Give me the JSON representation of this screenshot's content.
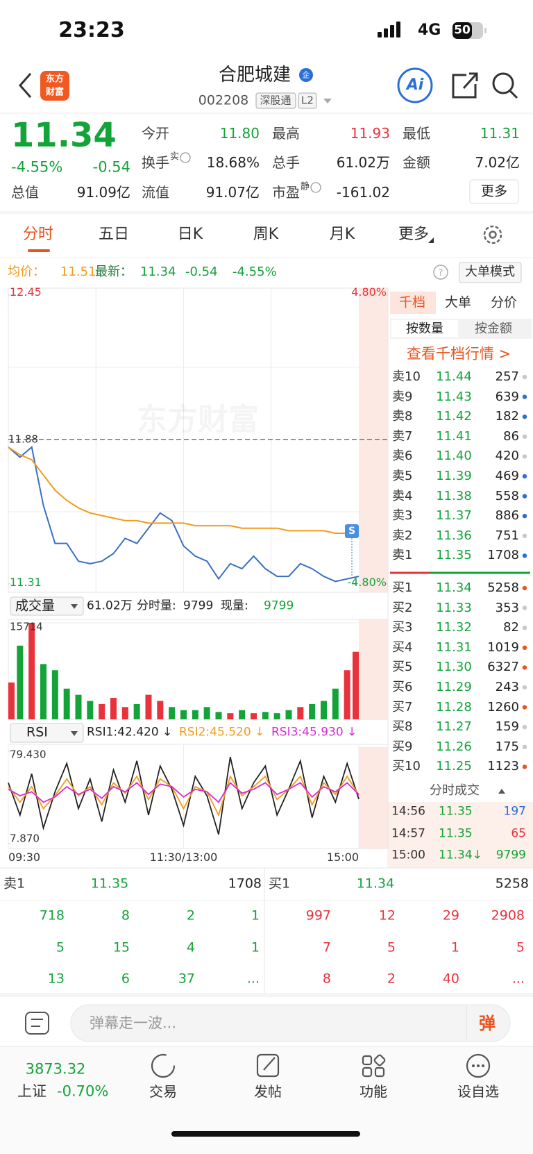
{
  "status": {
    "time": "23:23",
    "network": "4G",
    "battery": "50"
  },
  "header": {
    "logo": [
      "东方",
      "财富"
    ],
    "name": "合肥城建",
    "badge": "企",
    "code": "002208",
    "tags": [
      "深股通",
      "L2"
    ],
    "ai": "Ai"
  },
  "quote": {
    "price": "11.34",
    "change_pct": "-4.55%",
    "change": "-0.54",
    "stats": [
      [
        {
          "label": "今开",
          "value": "11.80",
          "color": "#13a339"
        },
        {
          "label": "最高",
          "value": "11.93",
          "color": "#e8323c"
        },
        {
          "label": "最低",
          "value": "11.31",
          "color": "#13a339"
        }
      ],
      [
        {
          "label": "换手",
          "sup": "实",
          "value": "18.68%"
        },
        {
          "label": "总手",
          "value": "61.02万"
        },
        {
          "label": "金额",
          "value": "7.02亿"
        }
      ],
      [
        {
          "label": "总值",
          "value": "91.09亿"
        },
        {
          "label": "流值",
          "value": "91.07亿"
        },
        {
          "label": "市盈",
          "sup": "静",
          "value": "-161.02"
        }
      ]
    ],
    "more": "更多"
  },
  "tabs": [
    "分时",
    "五日",
    "日K",
    "周K",
    "月K",
    "更多"
  ],
  "summary": {
    "avg_label": "均价：",
    "avg": "11.51",
    "latest_label": "最新：",
    "latest": "11.34",
    "change": "-0.54",
    "change_pct": "-4.55%",
    "mode": "大单模式"
  },
  "watermark": "东方财富",
  "chart_data": [
    {
      "type": "line",
      "x": [
        0,
        8,
        16,
        24,
        32,
        40,
        48,
        56,
        64,
        72,
        80,
        88,
        96,
        104,
        112,
        120,
        128,
        136,
        144,
        152,
        160,
        168,
        176,
        184,
        192,
        200,
        208,
        216,
        224,
        232,
        240
      ],
      "xlim": [
        0,
        240
      ],
      "ylim": [
        11.31,
        12.45
      ],
      "yticks": [
        12.45,
        11.31
      ],
      "y2lim": [
        -4.8,
        4.8
      ],
      "y2ticks": [
        {
          "value": 4.8,
          "label": "4.80%"
        },
        {
          "value": -4.8,
          "label": "-4.80%"
        }
      ],
      "reference": 11.88,
      "annotation": "S",
      "series": [
        {
          "color": "#3a6fc4",
          "values": [
            11.85,
            11.81,
            11.85,
            11.62,
            11.47,
            11.47,
            11.4,
            11.39,
            11.4,
            11.43,
            11.49,
            11.47,
            11.53,
            11.59,
            11.56,
            11.46,
            11.42,
            11.4,
            11.33,
            11.39,
            11.37,
            11.42,
            11.37,
            11.34,
            11.34,
            11.39,
            11.37,
            11.34,
            11.32,
            11.33,
            11.34
          ]
        },
        {
          "color": "#f29b1a",
          "values": [
            11.85,
            11.82,
            11.8,
            11.74,
            11.68,
            11.64,
            11.61,
            11.59,
            11.58,
            11.57,
            11.56,
            11.56,
            11.55,
            11.55,
            11.55,
            11.55,
            11.54,
            11.54,
            11.54,
            11.54,
            11.53,
            11.53,
            11.53,
            11.53,
            11.52,
            11.52,
            11.52,
            11.52,
            11.51,
            11.51,
            11.51
          ]
        }
      ]
    },
    {
      "type": "bar",
      "title": "成交量",
      "total": "61.02万",
      "period_label": "分时量:",
      "period": "9799",
      "now_label": "现量:",
      "now": "9799",
      "x": [
        0,
        8,
        16,
        24,
        32,
        40,
        48,
        56,
        64,
        72,
        80,
        88,
        96,
        104,
        112,
        120,
        128,
        136,
        144,
        152,
        160,
        168,
        176,
        184,
        192,
        200,
        208,
        216,
        224,
        232,
        240
      ],
      "xlim": [
        0,
        240
      ],
      "ylim": [
        0,
        15714
      ],
      "yticks": [
        15714
      ],
      "values": [
        6000,
        12000,
        15714,
        9000,
        8000,
        5000,
        4000,
        3000,
        2500,
        3500,
        2000,
        2500,
        4000,
        3000,
        2000,
        1500,
        1500,
        2000,
        1200,
        1000,
        1500,
        1000,
        1200,
        1000,
        1500,
        2000,
        2500,
        3000,
        5000,
        8000,
        11000
      ],
      "colors": [
        "#e8323c",
        "#13a339",
        "#e8323c",
        "#13a339",
        "#13a339",
        "#13a339",
        "#13a339",
        "#13a339",
        "#e8323c",
        "#e8323c",
        "#e8323c",
        "#13a339",
        "#e8323c",
        "#e8323c",
        "#13a339",
        "#13a339",
        "#13a339",
        "#13a339",
        "#13a339",
        "#e8323c",
        "#13a339",
        "#e8323c",
        "#13a339",
        "#13a339",
        "#13a339",
        "#e8323c",
        "#13a339",
        "#13a339",
        "#13a339",
        "#e8323c",
        "#e8323c"
      ]
    },
    {
      "type": "line",
      "title": "RSI",
      "x": [
        0,
        8,
        16,
        24,
        32,
        40,
        48,
        56,
        64,
        72,
        80,
        88,
        96,
        104,
        112,
        120,
        128,
        136,
        144,
        152,
        160,
        168,
        176,
        184,
        192,
        200,
        208,
        216,
        224,
        232,
        240
      ],
      "xlim": [
        0,
        240
      ],
      "xticks": [
        {
          "value": 0,
          "label": "09:30"
        },
        {
          "value": 120,
          "label": "11:30/13:00"
        },
        {
          "value": 240,
          "label": "15:00"
        }
      ],
      "ylim": [
        7.87,
        79.43
      ],
      "yticks": [
        {
          "value": 79.43,
          "label": "79.430"
        },
        {
          "value": 7.87,
          "label": "7.870"
        }
      ],
      "series": [
        {
          "name": "RSI1:42.420 ↓",
          "color": "#222222",
          "values": [
            55,
            30,
            62,
            20,
            48,
            70,
            35,
            58,
            25,
            65,
            40,
            72,
            30,
            68,
            50,
            22,
            60,
            45,
            15,
            75,
            35,
            55,
            68,
            30,
            50,
            72,
            28,
            60,
            40,
            70,
            42.42
          ]
        },
        {
          "name": "RSI2:45.520 ↓",
          "color": "#f29b1a",
          "values": [
            52,
            40,
            52,
            35,
            45,
            58,
            45,
            52,
            38,
            55,
            47,
            60,
            42,
            58,
            52,
            35,
            52,
            48,
            30,
            60,
            45,
            52,
            60,
            42,
            50,
            60,
            38,
            55,
            46,
            60,
            45.52
          ]
        },
        {
          "name": "RSI3:45.930 ↓",
          "color": "#d62ad6",
          "values": [
            50,
            45,
            48,
            40,
            44,
            52,
            46,
            50,
            43,
            52,
            48,
            55,
            46,
            54,
            52,
            44,
            50,
            48,
            40,
            55,
            47,
            50,
            55,
            46,
            50,
            55,
            44,
            52,
            48,
            55,
            45.93
          ]
        }
      ]
    }
  ],
  "depth": {
    "tabs": [
      "千档",
      "大单",
      "分价"
    ],
    "modes": [
      "按数量",
      "按金额"
    ],
    "link": "查看千档行情 >",
    "asks": [
      {
        "label": "卖10",
        "price": "11.44",
        "volume": "257",
        "dot": "#c8c8c8"
      },
      {
        "label": "卖9",
        "price": "11.43",
        "volume": "639",
        "dot": "#2a6fd6"
      },
      {
        "label": "卖8",
        "price": "11.42",
        "volume": "182",
        "dot": "#2a6fd6"
      },
      {
        "label": "卖7",
        "price": "11.41",
        "volume": "86",
        "dot": "#c8c8c8"
      },
      {
        "label": "卖6",
        "price": "11.40",
        "volume": "420",
        "dot": "#c8c8c8"
      },
      {
        "label": "卖5",
        "price": "11.39",
        "volume": "469",
        "dot": "#2a6fd6"
      },
      {
        "label": "卖4",
        "price": "11.38",
        "volume": "558",
        "dot": "#2a6fd6"
      },
      {
        "label": "卖3",
        "price": "11.37",
        "volume": "886",
        "dot": "#2a6fd6"
      },
      {
        "label": "卖2",
        "price": "11.36",
        "volume": "751",
        "dot": "#c8c8c8"
      },
      {
        "label": "卖1",
        "price": "11.35",
        "volume": "1708",
        "dot": "#2a6fd6"
      }
    ],
    "bids": [
      {
        "label": "买1",
        "price": "11.34",
        "volume": "5258",
        "dot": "#e8541e"
      },
      {
        "label": "买2",
        "price": "11.33",
        "volume": "353",
        "dot": "#c8c8c8"
      },
      {
        "label": "买3",
        "price": "11.32",
        "volume": "82",
        "dot": "#c8c8c8"
      },
      {
        "label": "买4",
        "price": "11.31",
        "volume": "1019",
        "dot": "#e8541e"
      },
      {
        "label": "买5",
        "price": "11.30",
        "volume": "6327",
        "dot": "#e8541e"
      },
      {
        "label": "买6",
        "price": "11.29",
        "volume": "243",
        "dot": "#c8c8c8"
      },
      {
        "label": "买7",
        "price": "11.28",
        "volume": "1260",
        "dot": "#e8541e"
      },
      {
        "label": "买8",
        "price": "11.27",
        "volume": "159",
        "dot": "#c8c8c8"
      },
      {
        "label": "买9",
        "price": "11.26",
        "volume": "175",
        "dot": "#c8c8c8"
      },
      {
        "label": "买10",
        "price": "11.25",
        "volume": "1123",
        "dot": "#e8541e"
      }
    ],
    "trades_title": "分时成交",
    "trades": [
      {
        "time": "14:56",
        "price": "11.35",
        "volume": "197",
        "color": "#2a6fd6"
      },
      {
        "time": "14:57",
        "price": "11.35",
        "volume": "65",
        "color": "#e8323c"
      },
      {
        "time": "15:00",
        "price": "11.34↓",
        "volume": "9799",
        "color": "#13a339"
      }
    ]
  },
  "book": {
    "ask": {
      "label": "卖1",
      "price": "11.35",
      "volume": "1708",
      "cells": [
        [
          "718",
          "8",
          "2",
          "1"
        ],
        [
          "5",
          "15",
          "4",
          "1"
        ],
        [
          "13",
          "6",
          "37",
          "..."
        ]
      ]
    },
    "bid": {
      "label": "买1",
      "price": "11.34",
      "volume": "5258",
      "cells": [
        [
          "997",
          "12",
          "29",
          "2908"
        ],
        [
          "7",
          "5",
          "1",
          "5"
        ],
        [
          "8",
          "2",
          "40",
          "..."
        ]
      ]
    }
  },
  "comment": {
    "placeholder": "弹幕走一波...",
    "button": "弹"
  },
  "nav": {
    "index_value": "3873.32",
    "index_name": "上证",
    "index_change": "-0.70%",
    "items": [
      "交易",
      "发帖",
      "功能",
      "设自选"
    ]
  }
}
